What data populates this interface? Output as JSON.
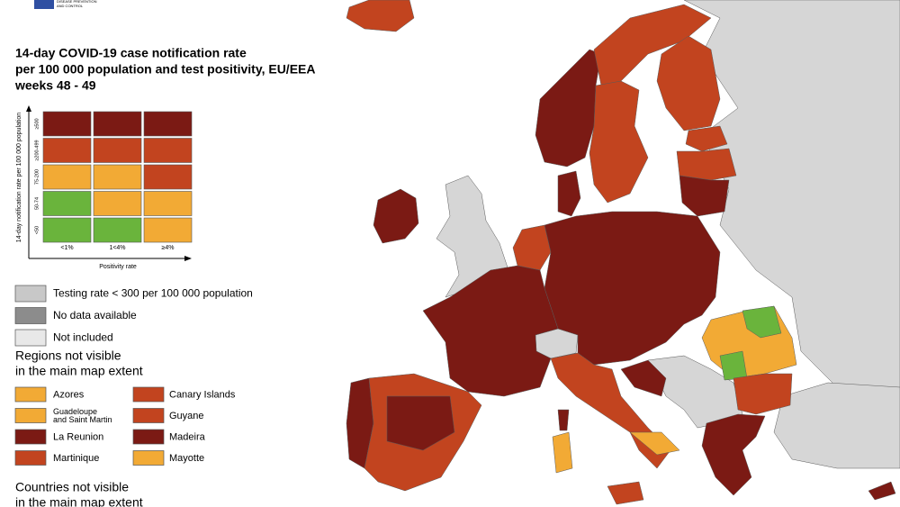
{
  "header": {
    "logo_lines": [
      "DISEASE PREVENTION",
      "AND CONTROL"
    ],
    "title_lines": [
      "14-day COVID-19 case notification rate",
      "per 100 000 population and test positivity, EU/EEA",
      "weeks 48 - 49"
    ]
  },
  "matrix": {
    "y_label": "14-day notification rate per 100 000 population",
    "x_label": "Positivity rate",
    "row_labels": [
      "≥500",
      "≥200-499",
      "75-200",
      "50-74",
      "<50"
    ],
    "column_labels": [
      "<1%",
      "1<4%",
      "≥4%"
    ],
    "cells": [
      [
        "#7b1a14",
        "#7b1a14",
        "#7b1a14"
      ],
      [
        "#c2441f",
        "#c2441f",
        "#c2441f"
      ],
      [
        "#f2aa35",
        "#f2aa35",
        "#c2441f"
      ],
      [
        "#6ab43c",
        "#f2aa35",
        "#f2aa35"
      ],
      [
        "#6ab43c",
        "#6ab43c",
        "#f2aa35"
      ]
    ]
  },
  "legend": {
    "items": [
      {
        "label": "Testing rate < 300 per 100 000 population",
        "color": "#c8c8c8"
      },
      {
        "label": "No data available",
        "color": "#8c8c8c"
      },
      {
        "label": "Not included",
        "color": "#e8e8e8"
      }
    ]
  },
  "regions": {
    "heading_lines": [
      "Regions not visible",
      "in the main map extent"
    ],
    "items": [
      {
        "label": [
          "Azores"
        ],
        "color": "#f2aa35"
      },
      {
        "label": [
          "Guadeloupe",
          "and Saint Martin"
        ],
        "color": "#f2aa35"
      },
      {
        "label": [
          "La Reunion"
        ],
        "color": "#7b1a14"
      },
      {
        "label": [
          "Martinique"
        ],
        "color": "#c2441f"
      },
      {
        "label": [
          "Canary Islands"
        ],
        "color": "#c2441f"
      },
      {
        "label": [
          "Guyane"
        ],
        "color": "#c2441f"
      },
      {
        "label": [
          "Madeira"
        ],
        "color": "#7b1a14"
      },
      {
        "label": [
          "Mayotte"
        ],
        "color": "#f2aa35"
      }
    ]
  },
  "countries": {
    "heading_lines": [
      "Countries not visible",
      "in the main map extent"
    ]
  }
}
